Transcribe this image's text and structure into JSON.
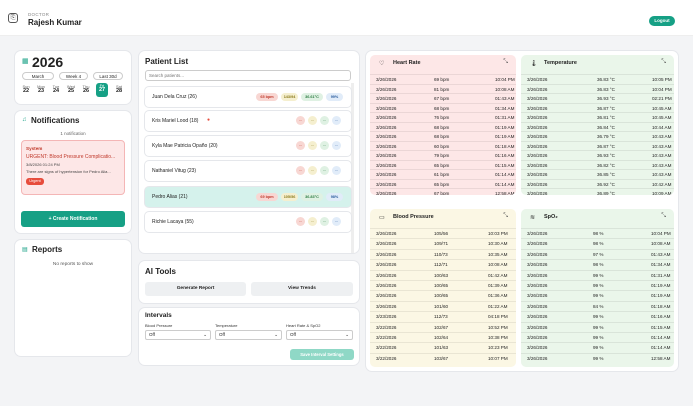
{
  "header": {
    "role": "DOCTOR",
    "name": "Rajesh Kumar",
    "logout": "Logout"
  },
  "calendar": {
    "year": "2026",
    "month_btn": "March",
    "week_btn": "Week 4",
    "last_btn": "Last 30d",
    "days": [
      {
        "d": "Sun",
        "n": "22"
      },
      {
        "d": "Mon",
        "n": "23"
      },
      {
        "d": "Tue",
        "n": "24"
      },
      {
        "d": "Wed",
        "n": "25"
      },
      {
        "d": "Thu",
        "n": "26"
      },
      {
        "d": "Fri",
        "n": "27"
      },
      {
        "d": "Sat",
        "n": "28"
      }
    ]
  },
  "notifications": {
    "title": "Notifications",
    "count": "1 notification",
    "item": {
      "type": "System",
      "title": "URGENT: Blood Pressure Complicatio...",
      "time": "3/8/2026 01:24 PM",
      "body": "There are signs of hypertension for Pedro Alia...",
      "badge": "Urgent"
    },
    "create": "+ Create Notification"
  },
  "reports": {
    "title": "Reports",
    "empty": "No reports to show"
  },
  "patients": {
    "title": "Patient List",
    "search_placeholder": "Search patients...",
    "rows": [
      {
        "name": "Juan Dela Cruz (26)",
        "hr": "65 bpm",
        "bp": "143/94",
        "temp": "36.61°C",
        "spo2": "99%"
      },
      {
        "name": "Kris Mariel Lood (18)",
        "alert": "●",
        "placeholder": "--"
      },
      {
        "name": "Kyla Mae Patricia Opaño (20)",
        "placeholder": "--"
      },
      {
        "name": "Nathaniel Vitug (23)",
        "placeholder": "--"
      },
      {
        "name": "Pedro Alias (21)",
        "hr": "69 bpm",
        "bp": "105/56",
        "temp": "36.83°C",
        "spo2": "98%"
      },
      {
        "name": "Richie Lacaya (55)",
        "placeholder": "--"
      }
    ]
  },
  "aitools": {
    "title": "AI Tools",
    "generate": "Generate Report",
    "trends": "View Trends"
  },
  "intervals": {
    "title": "Intervals",
    "bp_label": "Blood Pressure",
    "temp_label": "Temperature",
    "hr_label": "Heart Rate & SpO2",
    "off": "Off",
    "save": "Save Interval Settings"
  },
  "vitals": {
    "heart_rate": {
      "title": "Heart Rate",
      "rows": [
        [
          "3/26/2026",
          "69 bpm",
          "10:04 PM"
        ],
        [
          "3/26/2026",
          "81 bpm",
          "10:08 AM"
        ],
        [
          "3/26/2026",
          "67 bpm",
          "01:43 AM"
        ],
        [
          "3/26/2026",
          "68 bpm",
          "01:34 AM"
        ],
        [
          "3/26/2026",
          "76 bpm",
          "01:31 AM"
        ],
        [
          "3/26/2026",
          "68 bpm",
          "01:19 AM"
        ],
        [
          "3/26/2026",
          "68 bpm",
          "01:19 AM"
        ],
        [
          "3/26/2026",
          "60 bpm",
          "01:18 AM"
        ],
        [
          "3/26/2026",
          "79 bpm",
          "01:16 AM"
        ],
        [
          "3/26/2026",
          "65 bpm",
          "01:15 AM"
        ],
        [
          "3/26/2026",
          "61 bpm",
          "01:14 AM"
        ],
        [
          "3/26/2026",
          "65 bpm",
          "01:14 AM"
        ],
        [
          "3/26/2026",
          "67 bpm",
          "12:58 AM"
        ]
      ]
    },
    "temperature": {
      "title": "Temperature",
      "rows": [
        [
          "3/26/2026",
          "36.83 °C",
          "10:05 PM"
        ],
        [
          "3/26/2026",
          "36.83 °C",
          "10:04 PM"
        ],
        [
          "3/26/2026",
          "36.93 °C",
          "02:21 PM"
        ],
        [
          "3/26/2026",
          "36.87 °C",
          "10:45 AM"
        ],
        [
          "3/26/2026",
          "36.81 °C",
          "10:45 AM"
        ],
        [
          "3/26/2026",
          "36.84 °C",
          "10:44 AM"
        ],
        [
          "3/26/2026",
          "36.79 °C",
          "10:43 AM"
        ],
        [
          "3/26/2026",
          "36.87 °C",
          "10:43 AM"
        ],
        [
          "3/26/2026",
          "36.93 °C",
          "10:43 AM"
        ],
        [
          "3/26/2026",
          "36.82 °C",
          "10:43 AM"
        ],
        [
          "3/26/2026",
          "36.85 °C",
          "10:43 AM"
        ],
        [
          "3/26/2026",
          "36.92 °C",
          "10:42 AM"
        ],
        [
          "3/26/2026",
          "36.89 °C",
          "10:09 AM"
        ]
      ]
    },
    "blood_pressure": {
      "title": "Blood Pressure",
      "rows": [
        [
          "3/26/2026",
          "105/56",
          "10:03 PM"
        ],
        [
          "3/26/2026",
          "109/71",
          "10:30 AM"
        ],
        [
          "3/26/2026",
          "110/73",
          "10:35 AM"
        ],
        [
          "3/26/2026",
          "112/71",
          "10:08 AM"
        ],
        [
          "3/26/2026",
          "100/63",
          "01:42 AM"
        ],
        [
          "3/26/2026",
          "100/65",
          "01:39 AM"
        ],
        [
          "3/26/2026",
          "100/65",
          "01:36 AM"
        ],
        [
          "3/26/2026",
          "101/60",
          "01:22 AM"
        ],
        [
          "3/23/2026",
          "112/73",
          "04:18 PM"
        ],
        [
          "3/22/2026",
          "102/67",
          "10:52 PM"
        ],
        [
          "3/22/2026",
          "102/64",
          "10:38 PM"
        ],
        [
          "3/22/2026",
          "101/63",
          "10:23 PM"
        ],
        [
          "3/22/2026",
          "103/67",
          "10:07 PM"
        ]
      ]
    },
    "spo2": {
      "title": "SpO₂",
      "rows": [
        [
          "3/26/2026",
          "98 %",
          "10:04 PM"
        ],
        [
          "3/26/2026",
          "98 %",
          "10:08 AM"
        ],
        [
          "3/26/2026",
          "97 %",
          "01:43 AM"
        ],
        [
          "3/26/2026",
          "98 %",
          "01:34 AM"
        ],
        [
          "3/26/2026",
          "99 %",
          "01:31 AM"
        ],
        [
          "3/26/2026",
          "99 %",
          "01:19 AM"
        ],
        [
          "3/26/2026",
          "99 %",
          "01:19 AM"
        ],
        [
          "3/26/2026",
          "84 %",
          "01:18 AM"
        ],
        [
          "3/26/2026",
          "99 %",
          "01:16 AM"
        ],
        [
          "3/26/2026",
          "99 %",
          "01:15 AM"
        ],
        [
          "3/26/2026",
          "99 %",
          "01:14 AM"
        ],
        [
          "3/26/2026",
          "99 %",
          "01:14 AM"
        ],
        [
          "3/26/2026",
          "99 %",
          "12:58 AM"
        ]
      ]
    }
  },
  "colors": {
    "accent": "#16a085",
    "hr_bg": "#fde7e7",
    "temp_bg": "#eaf6ea",
    "bp_bg": "#fbf7e4",
    "spo2_bg": "#eaf6ea"
  }
}
